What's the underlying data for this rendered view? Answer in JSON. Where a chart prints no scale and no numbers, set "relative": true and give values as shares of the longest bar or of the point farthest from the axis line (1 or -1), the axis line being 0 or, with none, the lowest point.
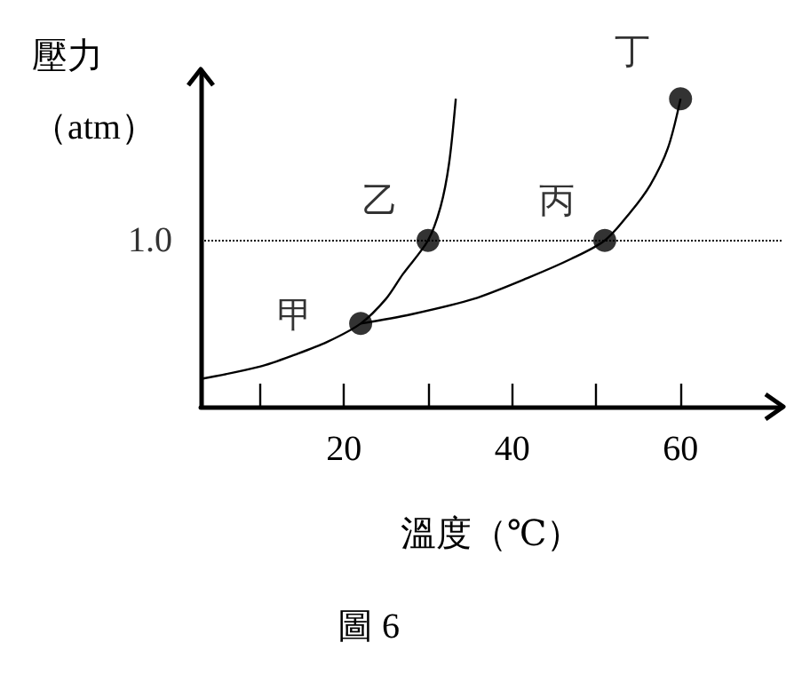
{
  "chart_data": {
    "type": "line",
    "xlabel": "溫度（℃）",
    "ylabel": "壓力（atm）",
    "relative": true,
    "xlim": [
      3,
      72
    ],
    "xticks": [
      {
        "value": 10,
        "label": null
      },
      20,
      {
        "value": 30,
        "label": null
      },
      40,
      {
        "value": 50,
        "label": null
      },
      60
    ],
    "series": [
      {
        "marker": "none",
        "color": "#000000",
        "x": [
          3,
          10,
          14.3,
          18,
          22,
          25,
          27,
          30,
          31.5,
          32.5,
          33.3
        ],
        "values": [
          0.09,
          0.13,
          0.17,
          0.21,
          0.27,
          0.35,
          0.43,
          0.54,
          0.65,
          0.79,
          1
        ]
      },
      {
        "marker": "none",
        "color": "#000000",
        "x": [
          22,
          28,
          35.4,
          42,
          47,
          51,
          54,
          56.4,
          58.5,
          60
        ],
        "values": [
          0.27,
          0.3,
          0.35,
          0.42,
          0.48,
          0.54,
          0.63,
          0.72,
          0.84,
          1
        ]
      },
      {
        "type": "scatter",
        "color": "#000000",
        "x": [
          22,
          30,
          51,
          60
        ],
        "values": [
          0.27,
          0.54,
          0.54,
          1
        ]
      }
    ],
    "marker": "circle",
    "grid": false,
    "ref_lines": [
      {
        "axis": "y",
        "value": 0.54,
        "line_style": "dotted",
        "color": "#000000"
      }
    ],
    "annotations": [
      {
        "text": "甲",
        "x": 22,
        "y": 0.27
      },
      {
        "text": "乙",
        "x": 30,
        "y": 0.54
      },
      {
        "text": "丙",
        "x": 51,
        "y": 0.54
      },
      {
        "text": "丁",
        "x": 60,
        "y": 1
      },
      "1.0",
      "圖 6"
    ]
  }
}
